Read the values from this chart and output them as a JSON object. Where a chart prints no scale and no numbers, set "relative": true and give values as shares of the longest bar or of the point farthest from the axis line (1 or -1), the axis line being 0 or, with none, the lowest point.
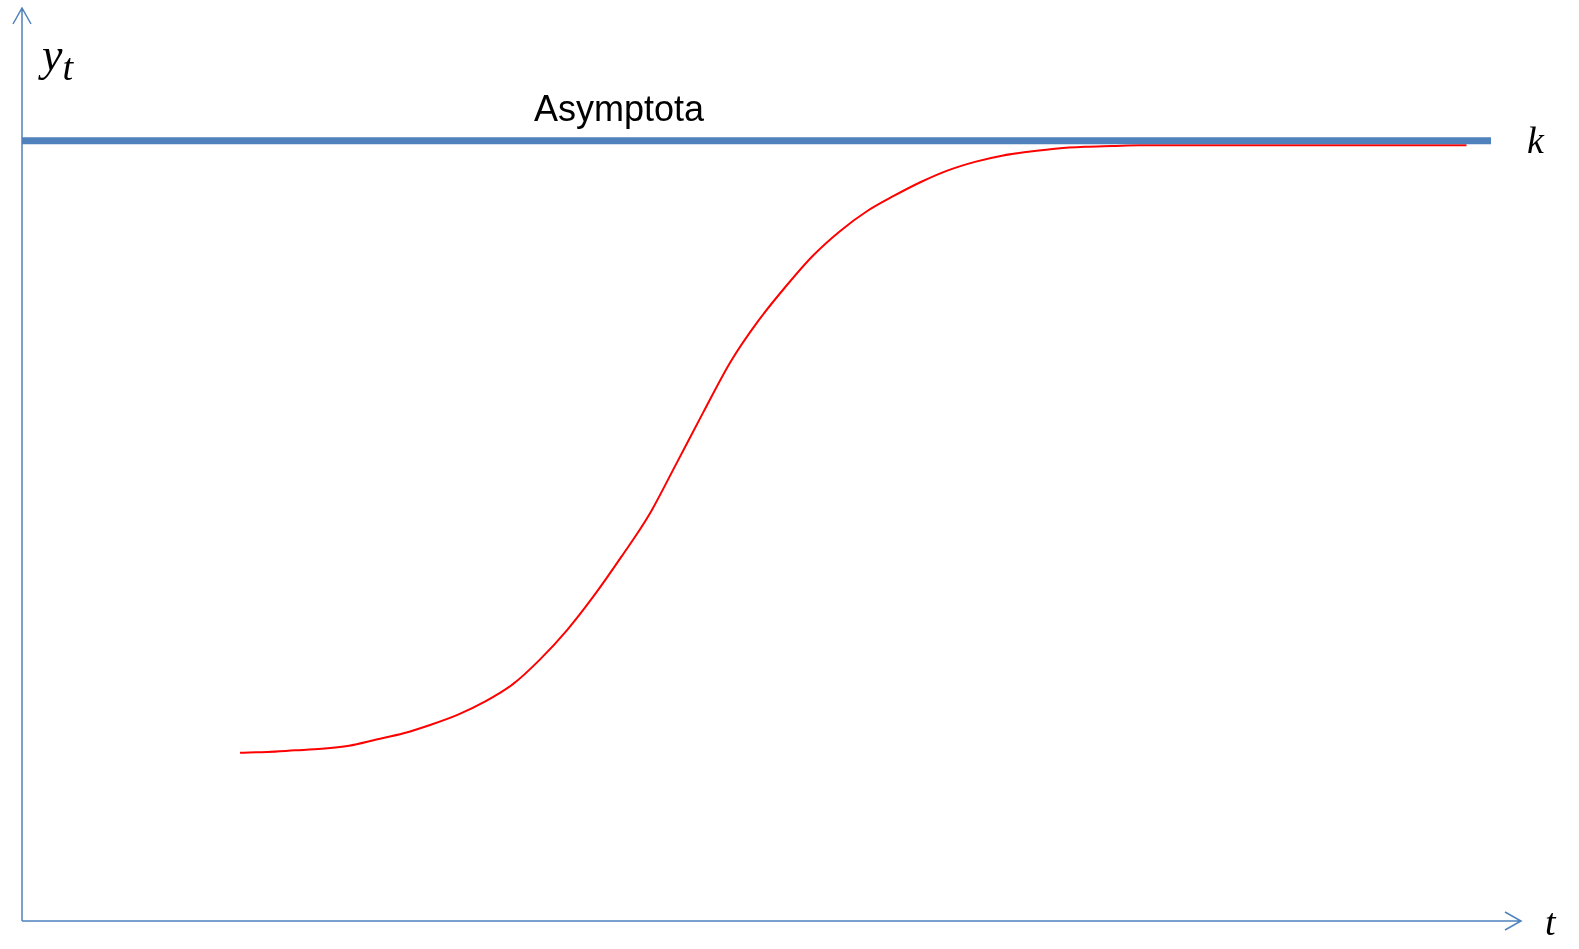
{
  "chart_data": {
    "type": "line",
    "relative": true,
    "xlabel": "t",
    "ylabel": "y$_{t}$",
    "legend": false,
    "marker": "none",
    "line_style": "solid",
    "annotations": [
      "Asymptota"
    ],
    "ref_lines": [
      {
        "axis": "y",
        "value": 1.006,
        "label": "k",
        "color": "#4f81bd"
      }
    ],
    "categories": [
      null,
      null,
      null,
      null,
      null,
      null,
      null,
      null,
      null,
      null,
      null,
      null,
      null,
      null,
      null,
      null,
      null,
      null,
      null,
      null,
      null,
      null,
      null,
      null,
      null,
      null,
      null,
      null,
      null,
      null,
      null,
      null,
      null,
      null,
      null,
      null,
      null,
      null,
      null,
      null,
      null,
      null,
      null,
      null,
      null,
      null,
      null,
      null,
      null,
      null,
      null,
      null,
      null,
      null,
      null,
      null
    ],
    "series": [
      {
        "color": "#ff0000",
        "values": [
          null,
          null,
          null,
          null,
          null,
          null,
          null,
          null,
          0.217,
          0.218,
          0.22,
          0.222,
          0.226,
          0.234,
          0.242,
          0.253,
          0.266,
          0.283,
          0.305,
          0.337,
          0.375,
          0.42,
          0.47,
          0.523,
          0.589,
          0.656,
          0.721,
          0.773,
          0.817,
          0.857,
          0.889,
          0.915,
          0.935,
          0.953,
          0.968,
          0.979,
          0.987,
          0.992,
          0.996,
          0.998,
          0.999,
          1,
          1,
          1,
          1,
          1,
          1,
          1,
          1,
          1,
          1,
          1,
          1,
          1,
          null,
          null
        ]
      }
    ]
  }
}
